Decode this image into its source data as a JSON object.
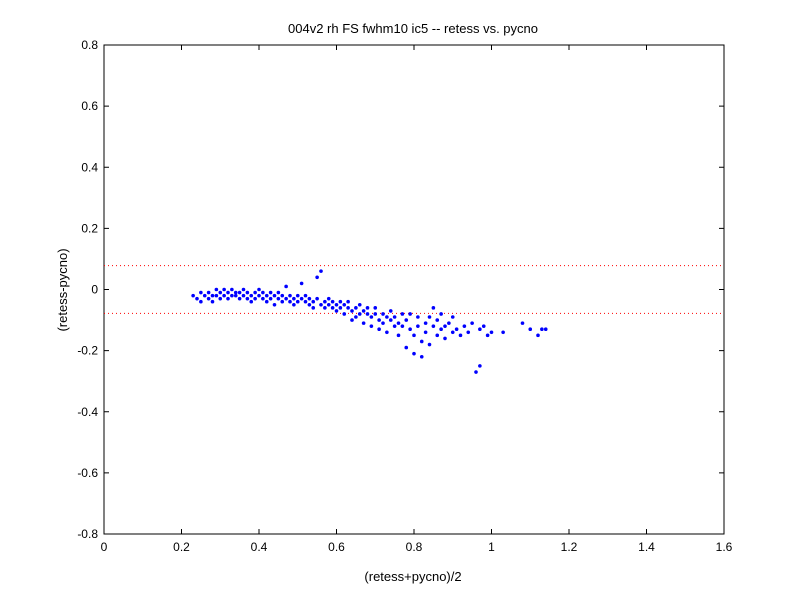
{
  "chart_data": {
    "type": "scatter",
    "title": "004v2 rh FS fwhm10 ic5 -- retess vs. pycno",
    "xlabel": "(retess+pycno)/2",
    "ylabel": "(retess-pycno)",
    "xlim": [
      0,
      1.6
    ],
    "ylim": [
      -0.8,
      0.8
    ],
    "xticks": [
      "0",
      "0.2",
      "0.4",
      "0.6",
      "0.8",
      "1",
      "1.2",
      "1.4",
      "1.6"
    ],
    "yticks": [
      "-0.8",
      "-0.6",
      "-0.4",
      "-0.2",
      "0",
      "0.2",
      "0.4",
      "0.6",
      "0.8"
    ],
    "grid": false,
    "colors": {
      "points": "#0000ff",
      "reference_lines": "#ff0000",
      "axes": "#000000"
    },
    "reference_lines": [
      {
        "y": 0.078,
        "style": "dotted"
      },
      {
        "y": -0.078,
        "style": "dotted"
      }
    ],
    "points_description": "about 1000 blue dot markers clustered between x 0.23 and 1.15",
    "series": [
      {
        "marker": "dot",
        "color": "#0000ff",
        "points": [
          [
            0.23,
            -0.02
          ],
          [
            0.24,
            -0.03
          ],
          [
            0.25,
            -0.01
          ],
          [
            0.25,
            -0.04
          ],
          [
            0.26,
            -0.02
          ],
          [
            0.27,
            -0.03
          ],
          [
            0.27,
            -0.01
          ],
          [
            0.28,
            -0.02
          ],
          [
            0.28,
            -0.04
          ],
          [
            0.29,
            0.0
          ],
          [
            0.29,
            -0.02
          ],
          [
            0.3,
            -0.01
          ],
          [
            0.3,
            -0.03
          ],
          [
            0.31,
            -0.02
          ],
          [
            0.31,
            0.0
          ],
          [
            0.32,
            -0.01
          ],
          [
            0.32,
            -0.03
          ],
          [
            0.33,
            -0.02
          ],
          [
            0.33,
            0.0
          ],
          [
            0.34,
            -0.01
          ],
          [
            0.34,
            -0.02
          ],
          [
            0.35,
            -0.03
          ],
          [
            0.35,
            -0.01
          ],
          [
            0.36,
            -0.02
          ],
          [
            0.36,
            0.0
          ],
          [
            0.37,
            -0.03
          ],
          [
            0.37,
            -0.01
          ],
          [
            0.38,
            -0.02
          ],
          [
            0.38,
            -0.04
          ],
          [
            0.39,
            -0.01
          ],
          [
            0.39,
            -0.03
          ],
          [
            0.4,
            -0.02
          ],
          [
            0.4,
            0.0
          ],
          [
            0.41,
            -0.03
          ],
          [
            0.41,
            -0.01
          ],
          [
            0.42,
            -0.02
          ],
          [
            0.42,
            -0.04
          ],
          [
            0.43,
            -0.03
          ],
          [
            0.43,
            -0.01
          ],
          [
            0.44,
            -0.02
          ],
          [
            0.44,
            -0.05
          ],
          [
            0.45,
            -0.03
          ],
          [
            0.45,
            -0.01
          ],
          [
            0.46,
            -0.04
          ],
          [
            0.46,
            -0.02
          ],
          [
            0.47,
            -0.03
          ],
          [
            0.47,
            0.01
          ],
          [
            0.48,
            -0.04
          ],
          [
            0.48,
            -0.02
          ],
          [
            0.49,
            -0.03
          ],
          [
            0.49,
            -0.05
          ],
          [
            0.5,
            -0.02
          ],
          [
            0.5,
            -0.04
          ],
          [
            0.51,
            -0.03
          ],
          [
            0.51,
            0.02
          ],
          [
            0.52,
            -0.04
          ],
          [
            0.52,
            -0.02
          ],
          [
            0.53,
            -0.05
          ],
          [
            0.53,
            -0.03
          ],
          [
            0.54,
            -0.04
          ],
          [
            0.54,
            -0.06
          ],
          [
            0.55,
            -0.03
          ],
          [
            0.55,
            0.04
          ],
          [
            0.56,
            -0.05
          ],
          [
            0.56,
            0.06
          ],
          [
            0.57,
            -0.04
          ],
          [
            0.57,
            -0.06
          ],
          [
            0.58,
            -0.05
          ],
          [
            0.58,
            -0.03
          ],
          [
            0.59,
            -0.06
          ],
          [
            0.59,
            -0.04
          ],
          [
            0.6,
            -0.05
          ],
          [
            0.6,
            -0.07
          ],
          [
            0.61,
            -0.06
          ],
          [
            0.61,
            -0.04
          ],
          [
            0.62,
            -0.05
          ],
          [
            0.62,
            -0.08
          ],
          [
            0.63,
            -0.06
          ],
          [
            0.63,
            -0.04
          ],
          [
            0.64,
            -0.07
          ],
          [
            0.64,
            -0.1
          ],
          [
            0.65,
            -0.06
          ],
          [
            0.65,
            -0.09
          ],
          [
            0.66,
            -0.08
          ],
          [
            0.66,
            -0.05
          ],
          [
            0.67,
            -0.07
          ],
          [
            0.67,
            -0.11
          ],
          [
            0.68,
            -0.08
          ],
          [
            0.68,
            -0.06
          ],
          [
            0.69,
            -0.09
          ],
          [
            0.69,
            -0.12
          ],
          [
            0.7,
            -0.08
          ],
          [
            0.7,
            -0.06
          ],
          [
            0.71,
            -0.1
          ],
          [
            0.71,
            -0.13
          ],
          [
            0.72,
            -0.08
          ],
          [
            0.72,
            -0.11
          ],
          [
            0.73,
            -0.09
          ],
          [
            0.73,
            -0.14
          ],
          [
            0.74,
            -0.1
          ],
          [
            0.74,
            -0.07
          ],
          [
            0.75,
            -0.12
          ],
          [
            0.75,
            -0.09
          ],
          [
            0.76,
            -0.11
          ],
          [
            0.76,
            -0.15
          ],
          [
            0.77,
            -0.08
          ],
          [
            0.77,
            -0.12
          ],
          [
            0.78,
            -0.1
          ],
          [
            0.78,
            -0.19
          ],
          [
            0.79,
            -0.13
          ],
          [
            0.79,
            -0.08
          ],
          [
            0.8,
            -0.15
          ],
          [
            0.8,
            -0.21
          ],
          [
            0.81,
            -0.12
          ],
          [
            0.81,
            -0.09
          ],
          [
            0.82,
            -0.17
          ],
          [
            0.82,
            -0.22
          ],
          [
            0.83,
            -0.11
          ],
          [
            0.83,
            -0.14
          ],
          [
            0.84,
            -0.09
          ],
          [
            0.84,
            -0.18
          ],
          [
            0.85,
            -0.12
          ],
          [
            0.85,
            -0.06
          ],
          [
            0.86,
            -0.15
          ],
          [
            0.86,
            -0.1
          ],
          [
            0.87,
            -0.13
          ],
          [
            0.87,
            -0.08
          ],
          [
            0.88,
            -0.12
          ],
          [
            0.88,
            -0.16
          ],
          [
            0.89,
            -0.11
          ],
          [
            0.9,
            -0.14
          ],
          [
            0.9,
            -0.09
          ],
          [
            0.91,
            -0.13
          ],
          [
            0.92,
            -0.15
          ],
          [
            0.93,
            -0.12
          ],
          [
            0.94,
            -0.14
          ],
          [
            0.95,
            -0.11
          ],
          [
            0.96,
            -0.27
          ],
          [
            0.97,
            -0.25
          ],
          [
            0.97,
            -0.13
          ],
          [
            0.98,
            -0.12
          ],
          [
            0.99,
            -0.15
          ],
          [
            1.0,
            -0.14
          ],
          [
            1.03,
            -0.14
          ],
          [
            1.08,
            -0.11
          ],
          [
            1.1,
            -0.13
          ],
          [
            1.12,
            -0.15
          ],
          [
            1.13,
            -0.13
          ],
          [
            1.14,
            -0.13
          ]
        ]
      }
    ]
  }
}
